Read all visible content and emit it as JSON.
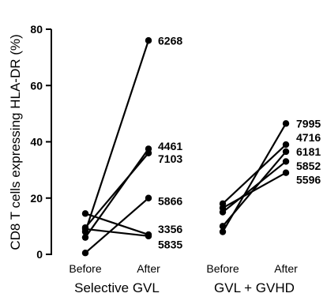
{
  "chart_data": {
    "type": "line",
    "ylabel": "CD8 T cells expressing HLA-DR (%)",
    "ylim": [
      0,
      80
    ],
    "yticks": [
      0,
      20,
      40,
      60,
      80
    ],
    "groups": [
      {
        "name": "Selective GVL",
        "categories": [
          "Before",
          "After"
        ],
        "series": [
          {
            "name": "6268",
            "values": [
              8,
              76
            ]
          },
          {
            "name": "4461",
            "values": [
              6,
              37.5
            ]
          },
          {
            "name": "7103",
            "values": [
              9.5,
              36
            ]
          },
          {
            "name": "5866",
            "values": [
              0.5,
              20
            ]
          },
          {
            "name": "3356",
            "values": [
              14.5,
              7
            ]
          },
          {
            "name": "5835",
            "values": [
              9,
              6.5
            ]
          }
        ]
      },
      {
        "name": "GVL + GVHD",
        "categories": [
          "Before",
          "After"
        ],
        "series": [
          {
            "name": "7995",
            "values": [
              8,
              46.5
            ]
          },
          {
            "name": "4716",
            "values": [
              18,
              39
            ]
          },
          {
            "name": "6181",
            "values": [
              10,
              36.5
            ]
          },
          {
            "name": "5852",
            "values": [
              15,
              33
            ]
          },
          {
            "name": "5596",
            "values": [
              16.5,
              29
            ]
          }
        ]
      }
    ],
    "point_labels": {
      "Selective GVL": [
        {
          "text": "6268",
          "at": 76
        },
        {
          "text": "4461",
          "at": 38.5
        },
        {
          "text": "7103",
          "at": 34
        },
        {
          "text": "5866",
          "at": 19
        },
        {
          "text": "3356",
          "at": 9
        },
        {
          "text": "5835",
          "at": 3.5
        }
      ],
      "GVL + GVHD": [
        {
          "text": "7995",
          "at": 46.5
        },
        {
          "text": "4716",
          "at": 41.5
        },
        {
          "text": "6181",
          "at": 36.5
        },
        {
          "text": "5852",
          "at": 31.5
        },
        {
          "text": "5596",
          "at": 26.5
        }
      ]
    }
  }
}
